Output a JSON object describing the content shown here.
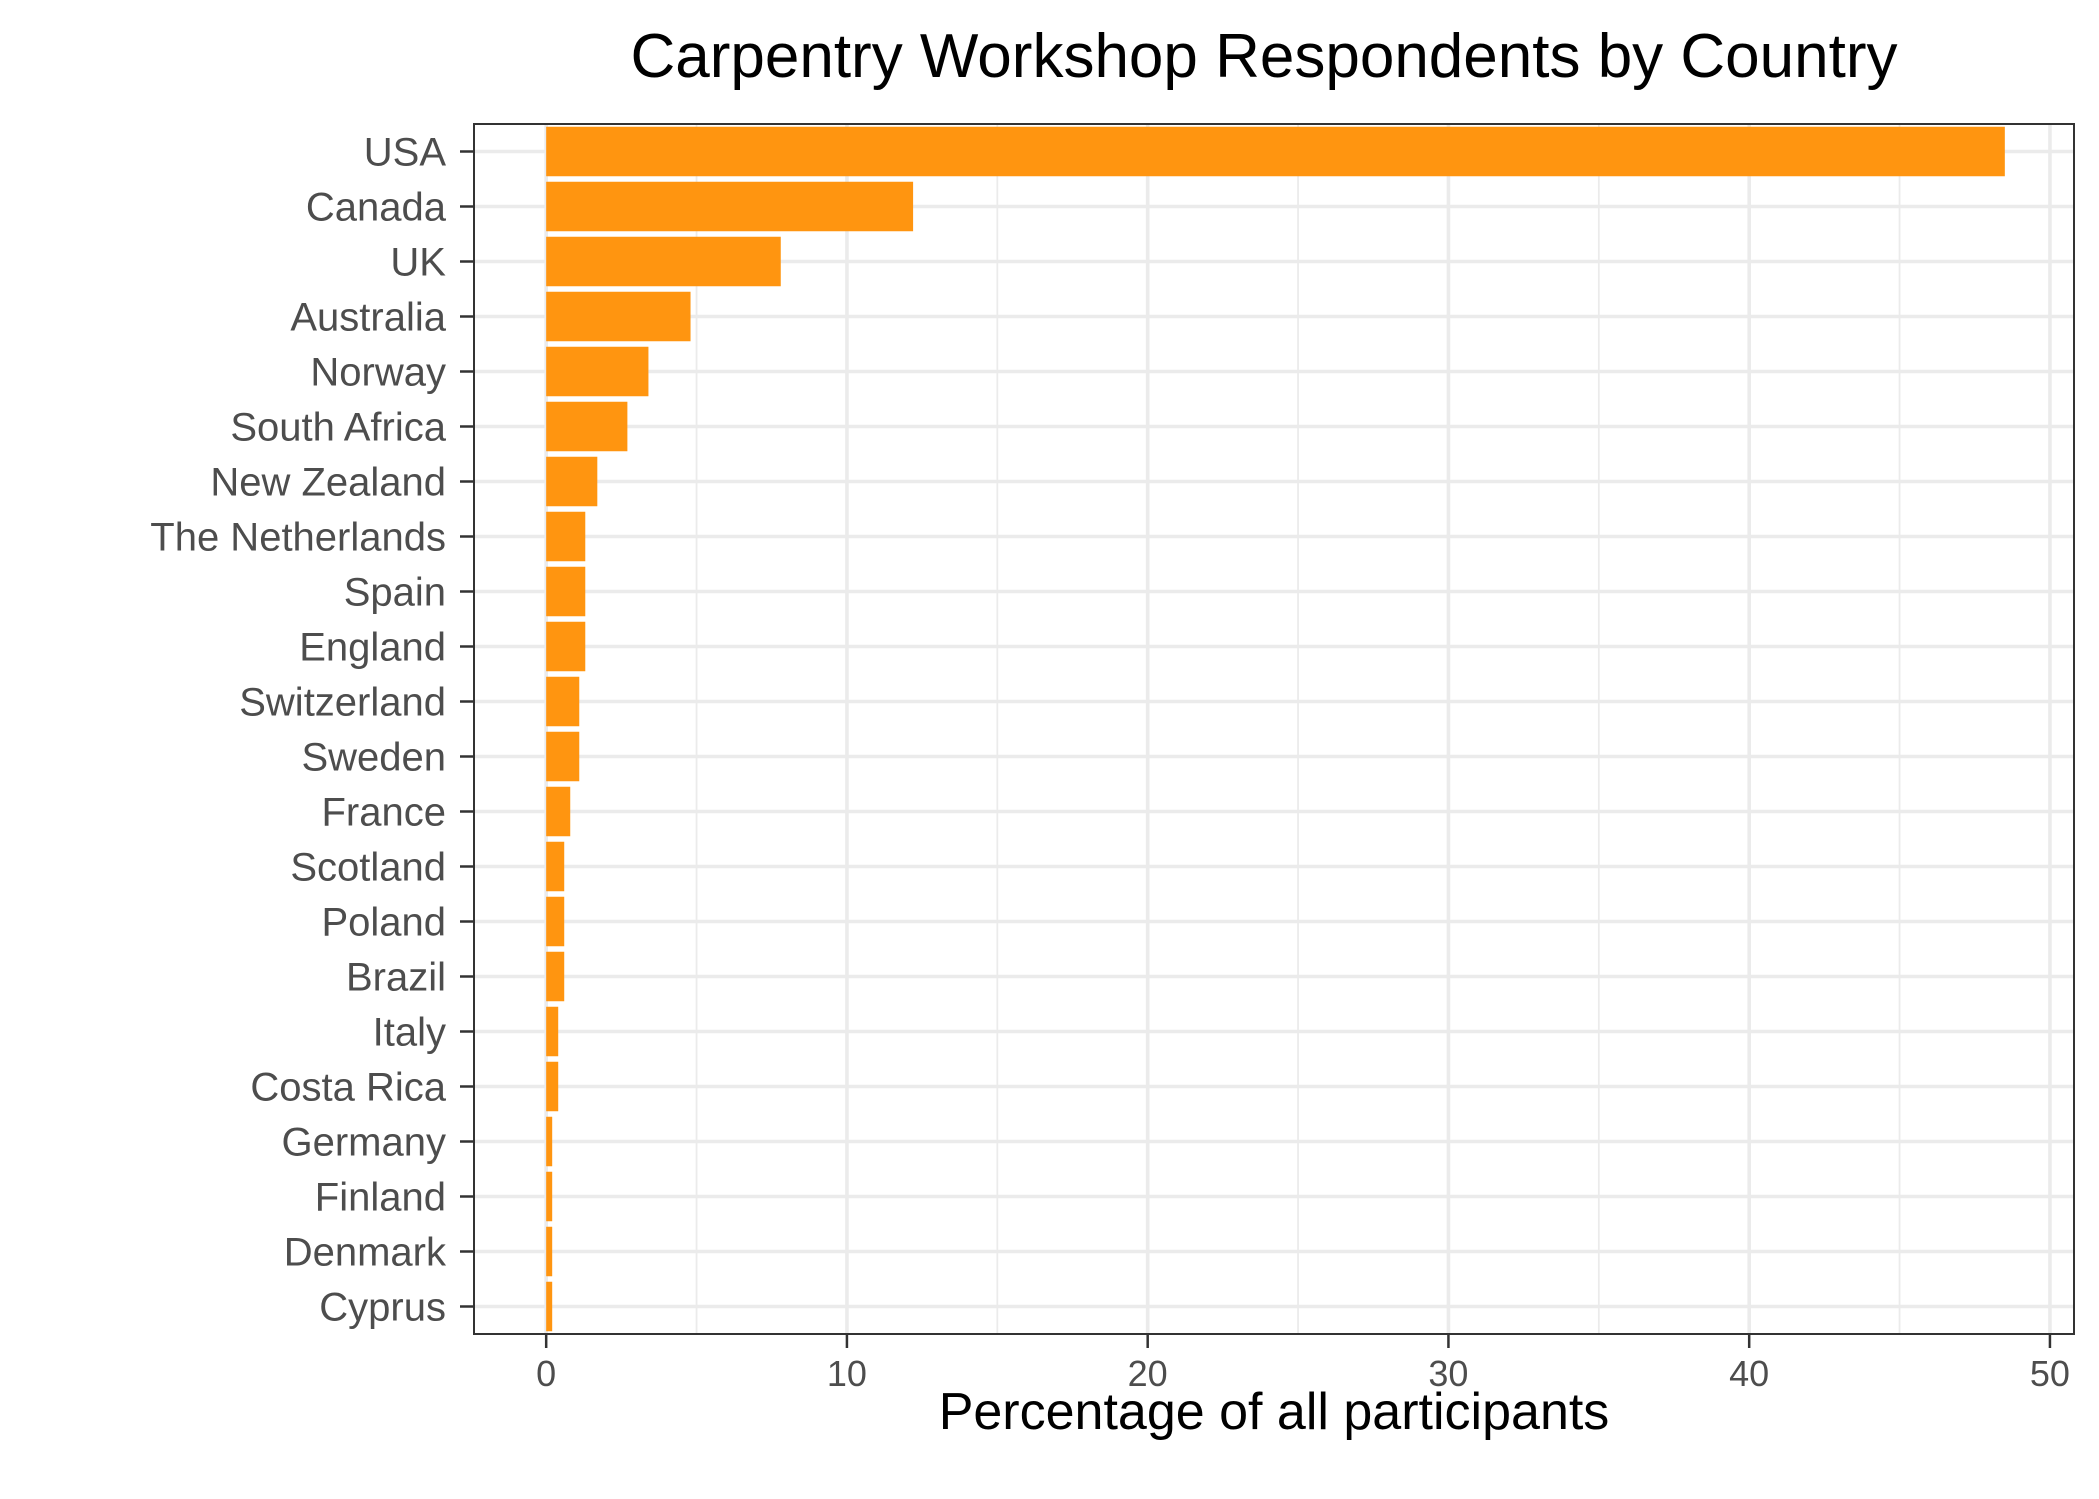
{
  "chart_data": {
    "type": "bar",
    "orientation": "horizontal",
    "title": "Carpentry Workshop Respondents by Country",
    "xlabel": "Percentage of all participants",
    "ylabel": "",
    "categories": [
      "USA",
      "Canada",
      "UK",
      "Australia",
      "Norway",
      "South Africa",
      "New Zealand",
      "The Netherlands",
      "Spain",
      "England",
      "Switzerland",
      "Sweden",
      "France",
      "Scotland",
      "Poland",
      "Brazil",
      "Italy",
      "Costa Rica",
      "Germany",
      "Finland",
      "Denmark",
      "Cyprus"
    ],
    "values": [
      48.5,
      12.2,
      7.8,
      4.8,
      3.4,
      2.7,
      1.7,
      1.3,
      1.3,
      1.3,
      1.1,
      1.1,
      0.8,
      0.6,
      0.6,
      0.6,
      0.4,
      0.4,
      0.2,
      0.2,
      0.2,
      0.2
    ],
    "xlim": [
      -2.4,
      50.8
    ],
    "xticks": [
      0,
      10,
      20,
      30,
      40,
      50
    ],
    "grid": true,
    "legend": "none",
    "bar_color": "#FF9510"
  }
}
